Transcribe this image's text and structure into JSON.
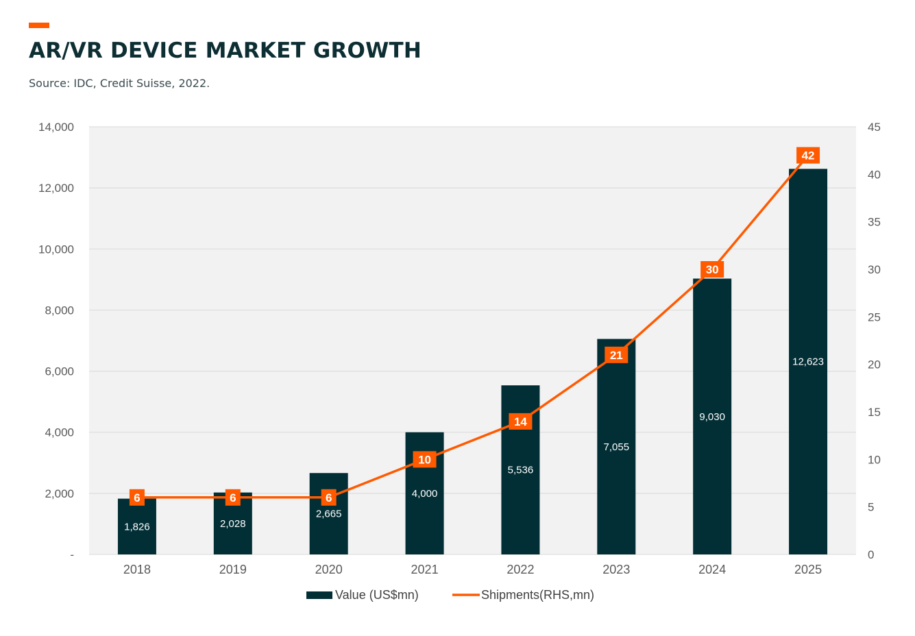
{
  "header": {
    "title": "AR/VR DEVICE MARKET GROWTH",
    "subtitle": "Source: IDC, Credit Suisse, 2022."
  },
  "colors": {
    "accent": "#ff5a00",
    "bar": "#022f35",
    "plot_background": "#f2f2f2",
    "title": "#0d2e33"
  },
  "chart_data": {
    "type": "bar",
    "title": "AR/VR DEVICE MARKET GROWTH",
    "subtitle": "Source: IDC, Credit Suisse, 2022.",
    "categories": [
      "2018",
      "2019",
      "2020",
      "2021",
      "2022",
      "2023",
      "2024",
      "2025"
    ],
    "series": [
      {
        "name": "Value (US$mn)",
        "type": "bar",
        "axis": "left",
        "values": [
          1826,
          2028,
          2665,
          4000,
          5536,
          7055,
          9030,
          12623
        ],
        "labels": [
          "1,826",
          "2,028",
          "2,665",
          "4,000",
          "5,536",
          "7,055",
          "9,030",
          "12,623"
        ],
        "color": "#022f35"
      },
      {
        "name": "Shipments(RHS,mn)",
        "type": "line",
        "axis": "right",
        "values": [
          6,
          6,
          6,
          10,
          14,
          21,
          30,
          42
        ],
        "labels": [
          "6",
          "6",
          "6",
          "10",
          "14",
          "21",
          "30",
          "42"
        ],
        "color": "#ff5a00"
      }
    ],
    "y_left": {
      "range": [
        0,
        14000
      ],
      "ticks": [
        0,
        2000,
        4000,
        6000,
        8000,
        10000,
        12000,
        14000
      ],
      "tick_labels": [
        "-",
        "2,000",
        "4,000",
        "6,000",
        "8,000",
        "10,000",
        "12,000",
        "14,000"
      ]
    },
    "y_right": {
      "range": [
        0,
        45
      ],
      "ticks": [
        0,
        5,
        10,
        15,
        20,
        25,
        30,
        35,
        40,
        45
      ],
      "tick_labels": [
        "0",
        "5",
        "10",
        "15",
        "20",
        "25",
        "30",
        "35",
        "40",
        "45"
      ]
    },
    "grid": true,
    "legend": "bottom"
  }
}
